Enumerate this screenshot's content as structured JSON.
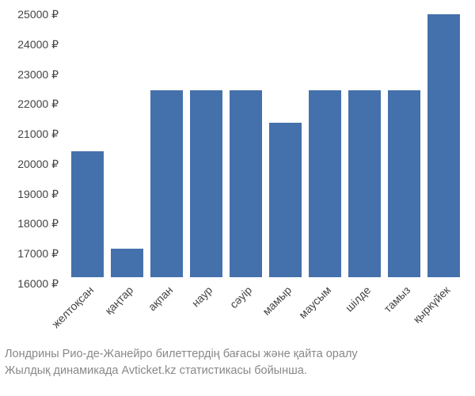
{
  "chart": {
    "type": "bar",
    "background_color": "#ffffff",
    "bar_color": "#4471ab",
    "axis_text_color": "#444444",
    "caption_color": "#888888",
    "y_min": 16000,
    "y_max": 25000,
    "y_tick_step": 1000,
    "y_suffix": " ₽",
    "tick_fontsize": 14,
    "caption_fontsize": 14.5,
    "bar_width_ratio": 0.82,
    "x_label_rotation": -45,
    "categories": [
      "желтоқсан",
      "қаңтар",
      "ақпан",
      "наур",
      "сәуір",
      "мамыр",
      "маусым",
      "шілде",
      "тамыз",
      "қыркүйек"
    ],
    "values": [
      20200,
      16950,
      22250,
      22250,
      22250,
      21150,
      22250,
      22250,
      22250,
      24800
    ],
    "y_ticks": [
      16000,
      17000,
      18000,
      19000,
      20000,
      21000,
      22000,
      23000,
      24000,
      25000
    ]
  },
  "caption": {
    "line1": "Лондрины Рио-де-Жанейро билеттердің бағасы және қайта оралу",
    "line2": "Жылдық динамикада Avticket.kz статистикасы бойынша."
  }
}
